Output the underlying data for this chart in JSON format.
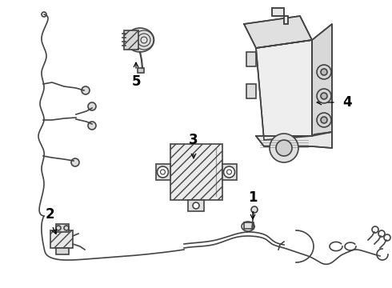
{
  "background_color": "#ffffff",
  "line_color": "#444444",
  "fig_width": 4.9,
  "fig_height": 3.6,
  "dpi": 100,
  "label_fontsize": 12
}
